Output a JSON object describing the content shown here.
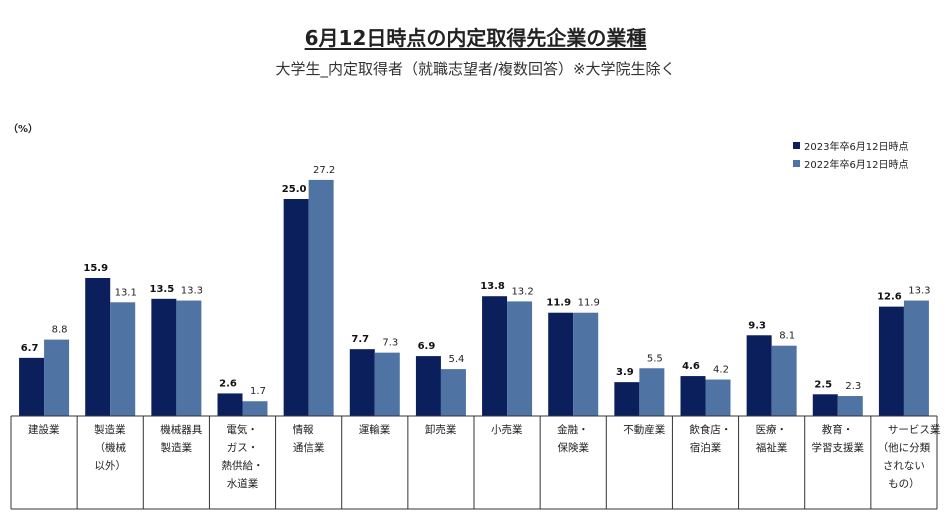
{
  "chart_data": {
    "type": "bar",
    "title": "6月12日時点の内定取得先企業の業種",
    "subtitle": "大学生_内定取得者（就職志望者/複数回答）※大学院生除く",
    "unit": "（%）",
    "categories": [
      [
        "建設業"
      ],
      [
        "製造業",
        "（機械",
        "以外）"
      ],
      [
        "機械器具",
        "製造業"
      ],
      [
        "電気・",
        "ガス・",
        "熱供給・",
        "水道業"
      ],
      [
        "情報",
        "通信業"
      ],
      [
        "運輸業"
      ],
      [
        "卸売業"
      ],
      [
        "小売業"
      ],
      [
        "金融・",
        "保険業"
      ],
      [
        "不動産業"
      ],
      [
        "飲食店・",
        "宿泊業"
      ],
      [
        "医療・",
        "福祉業"
      ],
      [
        "教育・",
        "学習支援業"
      ],
      [
        "サービス業",
        "（他に分類",
        "されない",
        "もの）"
      ]
    ],
    "series": [
      {
        "name": "2023年卒6月12日時点",
        "color": "#0b1f5c",
        "values": [
          6.7,
          15.9,
          13.5,
          2.6,
          25.0,
          7.7,
          6.9,
          13.8,
          11.9,
          3.9,
          4.6,
          9.3,
          2.5,
          12.6
        ],
        "labels": [
          "6.7",
          "15.9",
          "13.5",
          "2.6",
          "25.0",
          "7.7",
          "6.9",
          "13.8",
          "11.9",
          "3.9",
          "4.6",
          "9.3",
          "2.5",
          "12.6"
        ]
      },
      {
        "name": "2022年卒6月12日時点",
        "color": "#4f73a3",
        "values": [
          8.8,
          13.1,
          13.3,
          1.7,
          27.2,
          7.3,
          5.4,
          13.2,
          11.9,
          5.5,
          4.2,
          8.1,
          2.3,
          13.3
        ],
        "labels": [
          "8.8",
          "13.1",
          "13.3",
          "1.7",
          "27.2",
          "7.3",
          "5.4",
          "13.2",
          "11.9",
          "5.5",
          "4.2",
          "8.1",
          "2.3",
          "13.3"
        ]
      }
    ],
    "ylim": [
      0,
      30
    ],
    "grid": false,
    "legend_position": "top-right"
  }
}
